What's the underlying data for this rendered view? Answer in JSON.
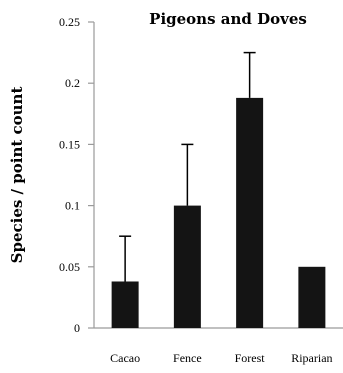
{
  "chart_data": {
    "type": "bar",
    "title": "Pigeons and Doves",
    "xlabel": "",
    "ylabel": "Species / point count",
    "ylim": [
      0,
      0.25
    ],
    "yticks": [
      "0",
      "0.05",
      "0.1",
      "0.15",
      "0.2",
      "0.25"
    ],
    "categories": [
      "Cacao",
      "Fence",
      "Forest",
      "Riparian"
    ],
    "values": [
      0.038,
      0.1,
      0.188,
      0.05
    ],
    "error_upper": [
      0.075,
      0.15,
      0.225,
      0.05
    ],
    "bar_color": "#141414",
    "grid": false,
    "legend": "none"
  }
}
